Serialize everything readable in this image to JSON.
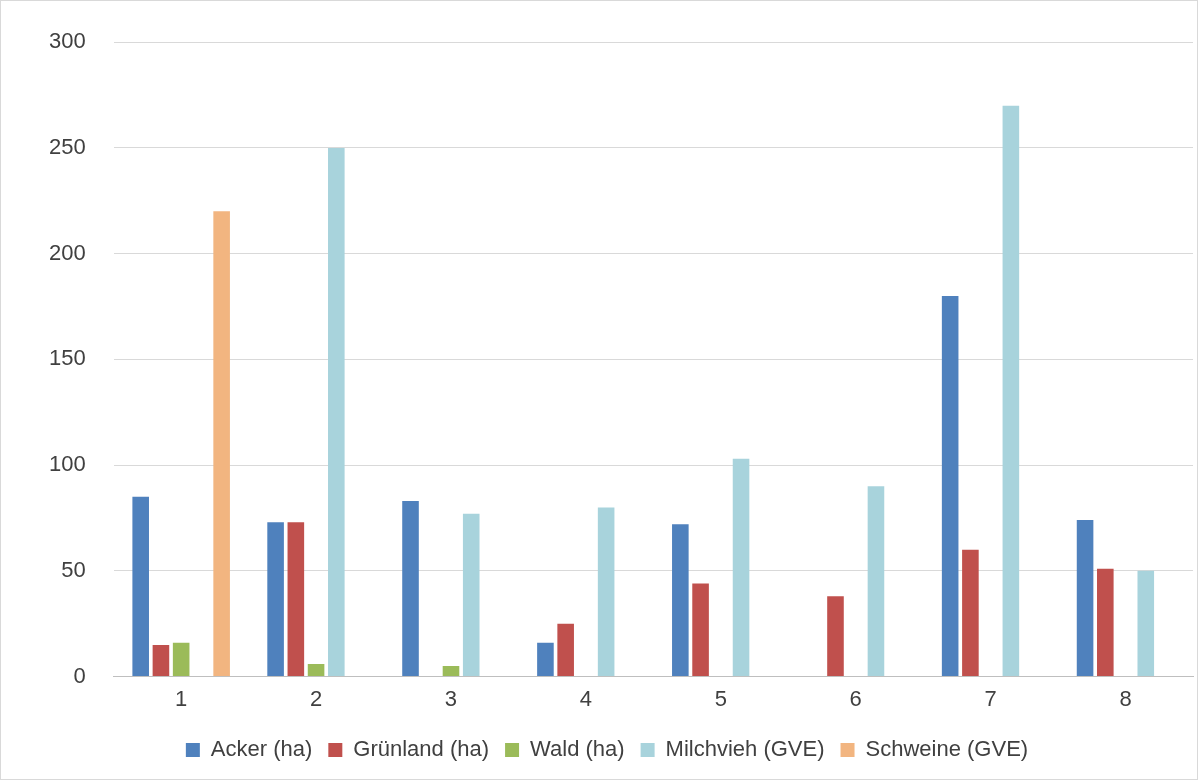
{
  "chart_data": {
    "type": "bar",
    "categories": [
      "1",
      "2",
      "3",
      "4",
      "5",
      "6",
      "7",
      "8"
    ],
    "series": [
      {
        "name": "Acker (ha)",
        "color": "#4f81bd",
        "values": [
          85,
          73,
          83,
          16,
          72,
          null,
          180,
          74
        ]
      },
      {
        "name": "Grünland (ha)",
        "color": "#c0504d",
        "values": [
          15,
          73,
          null,
          25,
          44,
          38,
          60,
          51
        ]
      },
      {
        "name": "Wald (ha)",
        "color": "#9bbb59",
        "values": [
          16,
          6,
          5,
          null,
          null,
          null,
          null,
          null
        ]
      },
      {
        "name": "Milchvieh (GVE)",
        "color": "#a8d3dc",
        "values": [
          null,
          250,
          77,
          80,
          103,
          90,
          270,
          50
        ]
      },
      {
        "name": "Schweine (GVE)",
        "color": "#f2b580",
        "values": [
          220,
          null,
          null,
          null,
          null,
          null,
          null,
          null
        ]
      }
    ],
    "ylim": [
      0,
      300
    ],
    "yticks": [
      0,
      50,
      100,
      150,
      200,
      250,
      300
    ],
    "grid": "y",
    "legend": "bottom"
  }
}
